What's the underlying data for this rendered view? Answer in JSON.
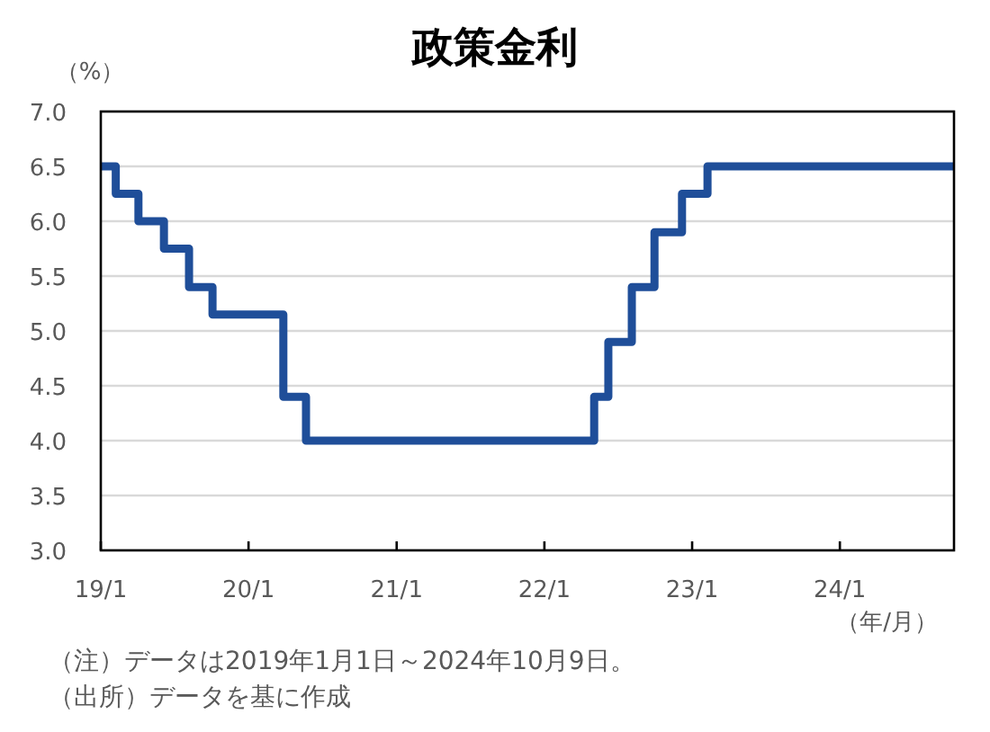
{
  "chart_data": {
    "type": "step",
    "title": "政策金利",
    "ylabel": "（%）",
    "xlabel": "（年/月）",
    "annotations": [
      "（注）データは2019年1月1日～2024年10月9日。",
      "（出所）データを基に作成"
    ],
    "x": [
      "2019-01-01",
      "2019-02-07",
      "2019-04-04",
      "2019-06-06",
      "2019-08-07",
      "2019-10-04",
      "2020-03-27",
      "2020-05-22",
      "2022-05-04",
      "2022-06-08",
      "2022-08-05",
      "2022-09-30",
      "2022-12-07",
      "2023-02-08",
      "2024-10-09"
    ],
    "values": [
      6.5,
      6.25,
      6.0,
      5.75,
      5.4,
      5.15,
      4.4,
      4.0,
      4.4,
      4.9,
      5.4,
      5.9,
      6.25,
      6.5,
      6.5
    ],
    "color": "#1f4e99",
    "xlim": [
      "2019-01-01",
      "2024-10-09"
    ],
    "xticks": [
      {
        "value": "2019-01",
        "label": "19/1"
      },
      {
        "value": "2020-01",
        "label": "20/1"
      },
      {
        "value": "2021-01",
        "label": "21/1"
      },
      {
        "value": "2022-01",
        "label": "22/1"
      },
      {
        "value": "2023-01",
        "label": "23/1"
      },
      {
        "value": "2024-01",
        "label": "24/1"
      }
    ],
    "ylim": [
      3,
      7
    ],
    "yticks": [
      {
        "value": 3,
        "label": "3.0"
      },
      3.5,
      {
        "value": 4,
        "label": "4.0"
      },
      4.5,
      {
        "value": 5,
        "label": "5.0"
      },
      5.5,
      {
        "value": 6,
        "label": "6.0"
      },
      6.5,
      {
        "value": 7,
        "label": "7.0"
      }
    ],
    "grid": "y"
  }
}
